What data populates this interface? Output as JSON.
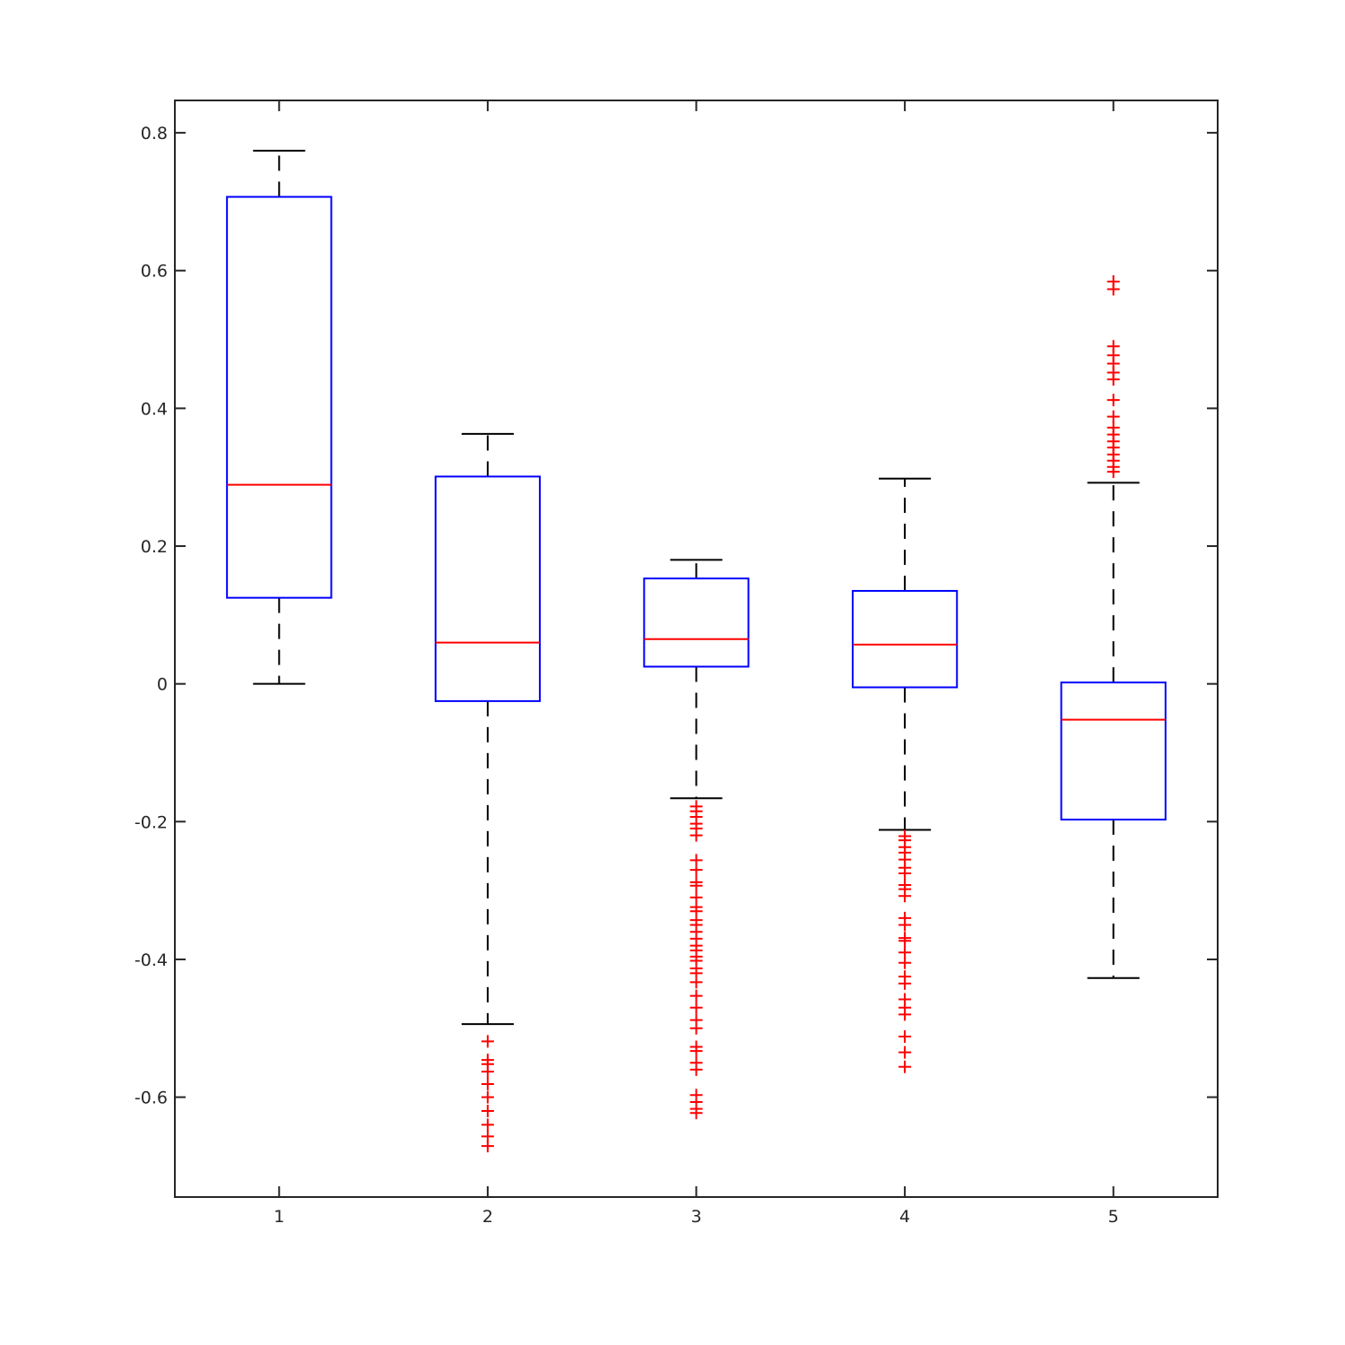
{
  "chart_data": {
    "type": "box",
    "title": "",
    "xlabel": "",
    "ylabel": "",
    "categories": [
      "1",
      "2",
      "3",
      "4",
      "5"
    ],
    "xlim": [
      0.5,
      5.5
    ],
    "ylim": [
      -0.745,
      0.847
    ],
    "yticks": [
      -0.6,
      -0.4,
      -0.2,
      0,
      0.2,
      0.4,
      0.6,
      0.8
    ],
    "ytick_labels": [
      "-0.6",
      "-0.4",
      "-0.2",
      "0",
      "0.2",
      "0.4",
      "0.6",
      "0.8"
    ],
    "grid": false,
    "colors": {
      "box": "#0000ff",
      "median": "#ff0000",
      "whisker": "#000000",
      "outlier": "#ff0000",
      "axis": "#262626"
    },
    "boxes": [
      {
        "label": "1",
        "whisker_low": 0.0,
        "q1": 0.125,
        "median": 0.289,
        "q3": 0.707,
        "whisker_high": 0.774,
        "outliers": []
      },
      {
        "label": "2",
        "whisker_low": -0.494,
        "q1": -0.025,
        "median": 0.06,
        "q3": 0.301,
        "whisker_high": 0.363,
        "outliers": [
          -0.519,
          -0.546,
          -0.552,
          -0.563,
          -0.581,
          -0.6,
          -0.62,
          -0.64,
          -0.657,
          -0.671
        ]
      },
      {
        "label": "3",
        "whisker_low": -0.166,
        "q1": 0.025,
        "median": 0.065,
        "q3": 0.153,
        "whisker_high": 0.18,
        "outliers": [
          -0.178,
          -0.185,
          -0.193,
          -0.203,
          -0.21,
          -0.22,
          -0.256,
          -0.27,
          -0.288,
          -0.293,
          -0.31,
          -0.324,
          -0.33,
          -0.343,
          -0.35,
          -0.36,
          -0.37,
          -0.38,
          -0.387,
          -0.396,
          -0.402,
          -0.413,
          -0.42,
          -0.433,
          -0.453,
          -0.47,
          -0.488,
          -0.5,
          -0.527,
          -0.533,
          -0.55,
          -0.56,
          -0.597,
          -0.607,
          -0.617,
          -0.623
        ]
      },
      {
        "label": "4",
        "whisker_low": -0.212,
        "q1": -0.005,
        "median": 0.057,
        "q3": 0.135,
        "whisker_high": 0.298,
        "outliers": [
          -0.221,
          -0.227,
          -0.237,
          -0.245,
          -0.255,
          -0.267,
          -0.275,
          -0.292,
          -0.298,
          -0.308,
          -0.34,
          -0.35,
          -0.369,
          -0.373,
          -0.39,
          -0.405,
          -0.425,
          -0.435,
          -0.458,
          -0.47,
          -0.48,
          -0.512,
          -0.535,
          -0.556
        ]
      },
      {
        "label": "5",
        "whisker_low": -0.427,
        "q1": -0.197,
        "median": -0.052,
        "q3": 0.002,
        "whisker_high": 0.292,
        "outliers": [
          0.308,
          0.315,
          0.324,
          0.333,
          0.343,
          0.352,
          0.362,
          0.372,
          0.388,
          0.412,
          0.442,
          0.452,
          0.465,
          0.477,
          0.49,
          0.573,
          0.584
        ]
      }
    ]
  }
}
